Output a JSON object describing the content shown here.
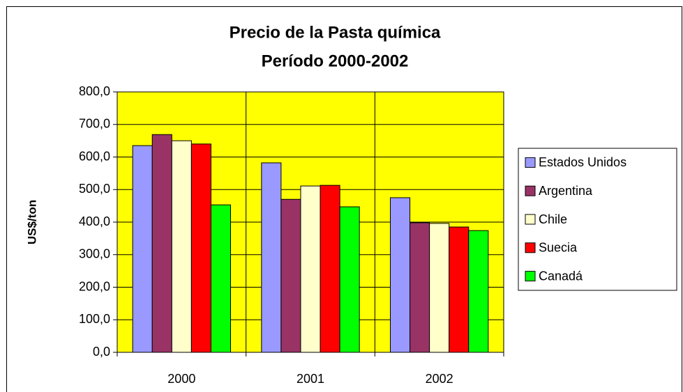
{
  "chart_data": {
    "type": "bar",
    "title": "Precio de la Pasta química",
    "subtitle": "Período 2000-2002",
    "y_label": "US$/ton",
    "categories": [
      "2000",
      "2001",
      "2002"
    ],
    "series": [
      {
        "name": "Estados Unidos",
        "color": "#9999ff",
        "values": [
          635,
          582,
          475
        ]
      },
      {
        "name": "Argentina",
        "color": "#993366",
        "values": [
          669,
          470,
          398
        ]
      },
      {
        "name": "Chile",
        "color": "#ffffcc",
        "values": [
          650,
          511,
          396
        ]
      },
      {
        "name": "Suecia",
        "color": "#ff0000",
        "values": [
          640,
          513,
          385
        ]
      },
      {
        "name": "Canadá",
        "color": "#00ff00",
        "values": [
          453,
          447,
          374
        ]
      }
    ],
    "ylim": [
      0,
      800
    ],
    "yticks": [
      {
        "value": 0,
        "label": "0,0"
      },
      {
        "value": 100,
        "label": "100,0"
      },
      {
        "value": 200,
        "label": "200,0"
      },
      {
        "value": 300,
        "label": "300,0"
      },
      {
        "value": 400,
        "label": "400,0"
      },
      {
        "value": 500,
        "label": "500,0"
      },
      {
        "value": 600,
        "label": "600,0"
      },
      {
        "value": 700,
        "label": "700,0"
      },
      {
        "value": 800,
        "label": "800,0"
      }
    ],
    "grid": true,
    "plot_background": "#ffff00",
    "legend": "right"
  }
}
